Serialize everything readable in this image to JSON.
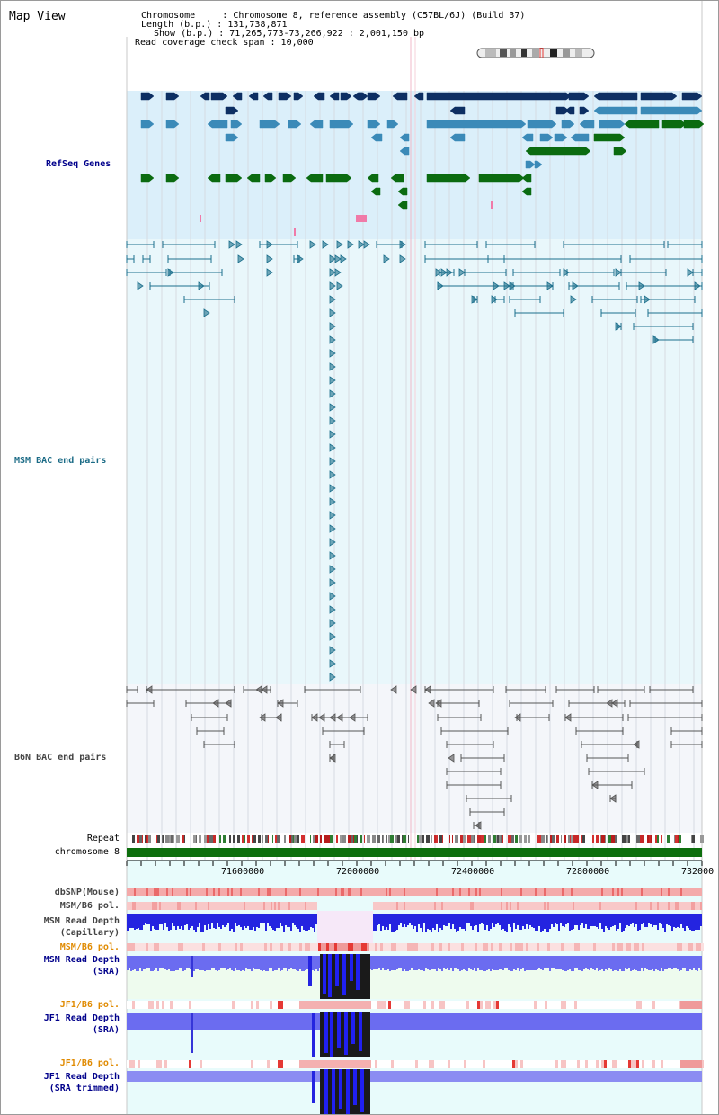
{
  "title": "Map View",
  "info": {
    "chromosome": "Chromosome     : Chromosome 8, reference assembly (C57BL/6J) (Build 37)",
    "length": "Length (b.p.) : 131,738,871",
    "show": "Show (b.p.) : 71,265,773-73,266,922 : 2,001,150 bp",
    "coverage": "Read coverage check span : 10,000"
  },
  "tracks": {
    "refseq": "RefSeq Genes",
    "msm_bac": "MSM BAC end pairs",
    "b6n_bac": "B6N BAC end pairs",
    "repeat": "Repeat",
    "chromosome": "chromosome 8",
    "dbsnp": "dbSNP(Mouse)",
    "msm_b6_pol_1": "MSM/B6 pol.",
    "msm_depth_cap_1": "MSM Read Depth",
    "msm_depth_cap_2": "(Capillary)",
    "msm_b6_pol_2": "MSM/B6 pol.",
    "msm_depth_sra_1": "MSM Read Depth",
    "msm_depth_sra_2": "(SRA)",
    "jf1_pol_1": "JF1/B6 pol.",
    "jf1_depth_sra_1": "JF1 Read Depth",
    "jf1_depth_sra_2": "(SRA)",
    "jf1_pol_2": "JF1/B6 pol.",
    "jf1_depth_trim_1": "JF1 Read Depth",
    "jf1_depth_trim_2": "(SRA trimmed)"
  },
  "axis_ticks": [
    "71600000",
    "72000000",
    "72400000",
    "72800000",
    "732000"
  ],
  "colors": {
    "refseq_bg": "#dbeffa",
    "msm_bg": "#e9f7fb",
    "b6n_bg": "#f4f6fa",
    "refseq_dark": "#0d2f63",
    "refseq_mid": "#3b8ab8",
    "refseq_green": "#0b6b10",
    "msm_pair": "#1c6f8c",
    "b6n_pair": "#555555",
    "label_blue": "#00008b",
    "label_teal": "#1b6b86",
    "label_gray": "#444444",
    "label_orange": "#e08a00",
    "depth_blue": "#2424e0"
  }
}
